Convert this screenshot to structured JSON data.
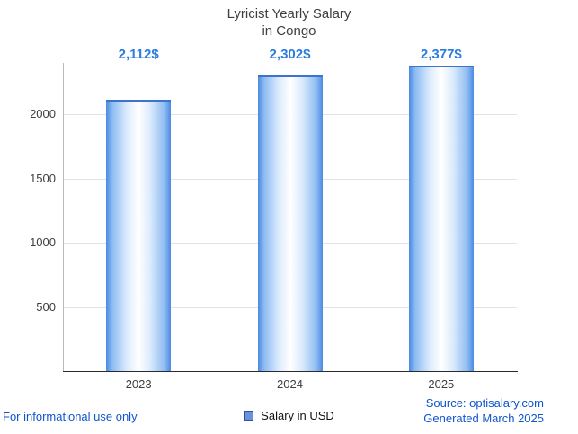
{
  "title": {
    "line1": "Lyricist Yearly Salary",
    "line2": "in Congo"
  },
  "chart_data": {
    "type": "bar",
    "categories": [
      "2023",
      "2024",
      "2025"
    ],
    "values": [
      2112,
      2302,
      2377
    ],
    "value_labels": [
      "2,112$",
      "2,302$",
      "2,377$"
    ],
    "series_name": "Salary in USD",
    "ylim": [
      0,
      2400
    ],
    "yticks": [
      500,
      1000,
      1500,
      2000
    ],
    "grid": true,
    "legend_position": "bottom"
  },
  "legend": {
    "label": "Salary in USD"
  },
  "footer": {
    "left": "For informational use only",
    "source": "Source: optisalary.com",
    "generated": "Generated March 2025"
  },
  "colors": {
    "value_label": "#2a7de0",
    "footer_text": "#1155cc",
    "bar_edge": "#4a8be4",
    "bar_center": "#ffffff",
    "bar_top_border": "#3c74cc",
    "legend_swatch": "#6991e3"
  }
}
